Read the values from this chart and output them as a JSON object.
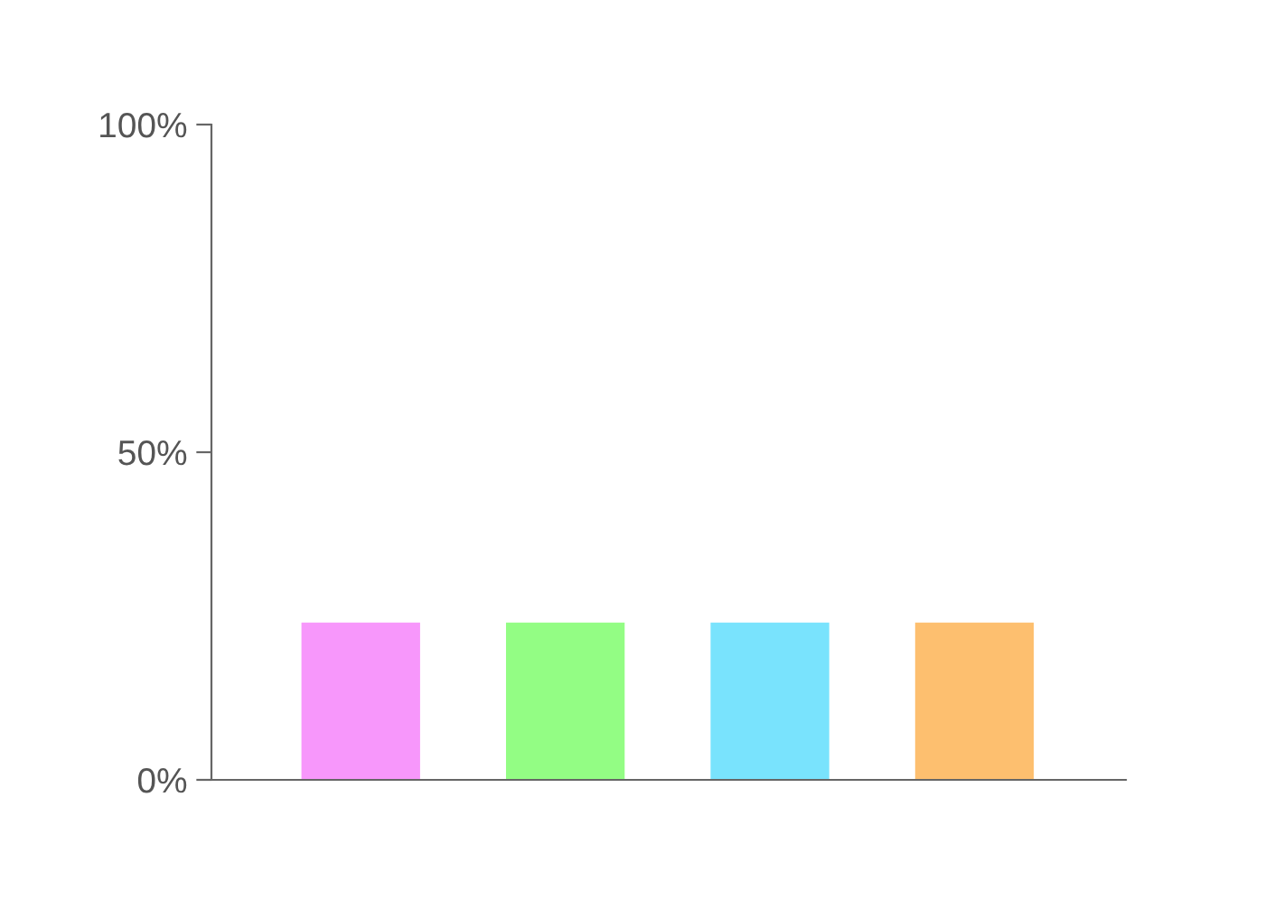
{
  "chart_data": {
    "type": "bar",
    "categories": [
      null,
      null,
      null,
      null
    ],
    "values": [
      24,
      24,
      24,
      24
    ],
    "colors": [
      "#f797fb",
      "#93fd84",
      "#79e3fd",
      "#fdbf6f"
    ],
    "ylim": [
      0,
      100
    ],
    "yticks": [
      {
        "value": 0,
        "label": "0%"
      },
      {
        "value": 50,
        "label": "50%"
      },
      {
        "value": 100,
        "label": "100%"
      }
    ],
    "grid": false,
    "legend": false
  }
}
